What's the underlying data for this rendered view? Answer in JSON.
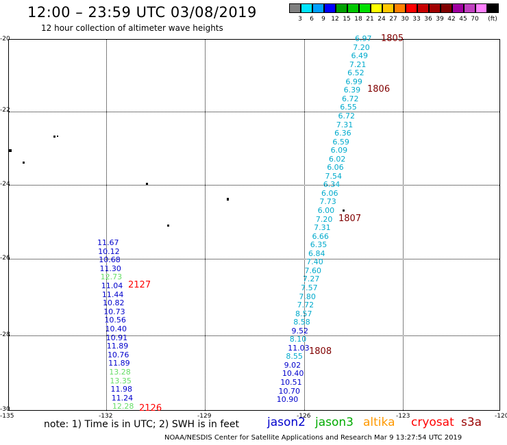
{
  "title": "12:00 – 23:59 UTC 03/08/2019",
  "subtitle": "12 hour collection of altimeter wave heights",
  "legend": {
    "unit": "(ft)",
    "colors": [
      "#808080",
      "#00e5ff",
      "#00a0ff",
      "#0000ff",
      "#00a000",
      "#00c800",
      "#00e000",
      "#ffff00",
      "#ffc800",
      "#ff8000",
      "#ff0000",
      "#c80000",
      "#a00000",
      "#800000",
      "#a000a0",
      "#c040c0",
      "#ff80ff",
      "#000000"
    ],
    "labels": [
      "3",
      "6",
      "9",
      "12",
      "15",
      "18",
      "21",
      "24",
      "27",
      "30",
      "33",
      "36",
      "39",
      "42",
      "45",
      "70"
    ]
  },
  "axes": {
    "lat_labels": [
      "-20",
      "-22",
      "-24",
      "-26",
      "-28",
      "-30"
    ],
    "lon_labels": [
      "-135",
      "-132",
      "-129",
      "-126",
      "-123",
      "-120"
    ]
  },
  "tracks": {
    "east": [
      {
        "v": "6.97",
        "c": "#00aacc"
      },
      {
        "v": "7.20",
        "c": "#00aacc"
      },
      {
        "v": "6.49",
        "c": "#00aacc"
      },
      {
        "v": "7.21",
        "c": "#00aacc"
      },
      {
        "v": "6.52",
        "c": "#00aacc"
      },
      {
        "v": "6.99",
        "c": "#00aacc"
      },
      {
        "v": "6.39",
        "c": "#00aacc"
      },
      {
        "v": "6.72",
        "c": "#00aacc"
      },
      {
        "v": "6.55",
        "c": "#00aacc"
      },
      {
        "v": "6.72",
        "c": "#00aacc"
      },
      {
        "v": "7.31",
        "c": "#00aacc"
      },
      {
        "v": "6.36",
        "c": "#00aacc"
      },
      {
        "v": "6.59",
        "c": "#00aacc"
      },
      {
        "v": "6.09",
        "c": "#00aacc"
      },
      {
        "v": "6.02",
        "c": "#00aacc"
      },
      {
        "v": "6.06",
        "c": "#00aacc"
      },
      {
        "v": "7.54",
        "c": "#00aacc"
      },
      {
        "v": "6.34",
        "c": "#00aacc"
      },
      {
        "v": "6.06",
        "c": "#00aacc"
      },
      {
        "v": "7.73",
        "c": "#00aacc"
      },
      {
        "v": "6.00",
        "c": "#00aacc"
      },
      {
        "v": "7.20",
        "c": "#00aacc"
      },
      {
        "v": "7.31",
        "c": "#00aacc"
      },
      {
        "v": "6.66",
        "c": "#00aacc"
      },
      {
        "v": "6.35",
        "c": "#00aacc"
      },
      {
        "v": "6.84",
        "c": "#00aacc"
      },
      {
        "v": "7.40",
        "c": "#00aacc"
      },
      {
        "v": "7.60",
        "c": "#00aacc"
      },
      {
        "v": "7.27",
        "c": "#00aacc"
      },
      {
        "v": "7.57",
        "c": "#00aacc"
      },
      {
        "v": "7.80",
        "c": "#00aacc"
      },
      {
        "v": "7.72",
        "c": "#00aacc"
      },
      {
        "v": "8.57",
        "c": "#00aacc"
      },
      {
        "v": "8.58",
        "c": "#00aacc"
      },
      {
        "v": "9.52",
        "c": "#0000cc"
      },
      {
        "v": "8.10",
        "c": "#00aacc"
      },
      {
        "v": "11.03",
        "c": "#0000cc"
      },
      {
        "v": "8.55",
        "c": "#00aacc"
      },
      {
        "v": "9.02",
        "c": "#0000cc"
      },
      {
        "v": "10.40",
        "c": "#0000cc"
      },
      {
        "v": "10.51",
        "c": "#0000cc"
      },
      {
        "v": "10.70",
        "c": "#0000cc"
      },
      {
        "v": "10.90",
        "c": "#0000cc"
      }
    ],
    "west": [
      {
        "v": "11.67",
        "c": "#0000cc"
      },
      {
        "v": "10.12",
        "c": "#0000cc"
      },
      {
        "v": "10.68",
        "c": "#0000cc"
      },
      {
        "v": "11.30",
        "c": "#0000cc"
      },
      {
        "v": "12.73",
        "c": "#66dd66"
      },
      {
        "v": "11.04",
        "c": "#0000cc"
      },
      {
        "v": "11.44",
        "c": "#0000cc"
      },
      {
        "v": "10.82",
        "c": "#0000cc"
      },
      {
        "v": "10.73",
        "c": "#0000cc"
      },
      {
        "v": "10.56",
        "c": "#0000cc"
      },
      {
        "v": "10.40",
        "c": "#0000cc"
      },
      {
        "v": "10.91",
        "c": "#0000cc"
      },
      {
        "v": "11.89",
        "c": "#0000cc"
      },
      {
        "v": "10.76",
        "c": "#0000cc"
      },
      {
        "v": "11.89",
        "c": "#0000cc"
      },
      {
        "v": "13.28",
        "c": "#66dd66"
      },
      {
        "v": "13.35",
        "c": "#66dd66"
      },
      {
        "v": "11.98",
        "c": "#0000cc"
      },
      {
        "v": "11.24",
        "c": "#0000cc"
      },
      {
        "v": "12.28",
        "c": "#66dd66"
      }
    ]
  },
  "times": [
    {
      "t": "1805",
      "c": "#800000"
    },
    {
      "t": "1806",
      "c": "#800000"
    },
    {
      "t": "1807",
      "c": "#800000"
    },
    {
      "t": "1808",
      "c": "#800000"
    },
    {
      "t": "2127",
      "c": "#ff0000"
    },
    {
      "t": "2126",
      "c": "#ff0000"
    }
  ],
  "note": "note:  1) Time is in UTC;  2) SWH is in feet",
  "satellites": [
    {
      "name": "jason2",
      "color": "#0000cc"
    },
    {
      "name": "jason3",
      "color": "#00aa00"
    },
    {
      "name": "altika",
      "color": "#ff9900"
    },
    {
      "name": "cryosat",
      "color": "#ff0000"
    },
    {
      "name": "s3a",
      "color": "#990000"
    }
  ],
  "footer": "NOAA/NESDIS Center for Satellite Applications and Research     Mar  9 13:27:54 UTC 2019"
}
